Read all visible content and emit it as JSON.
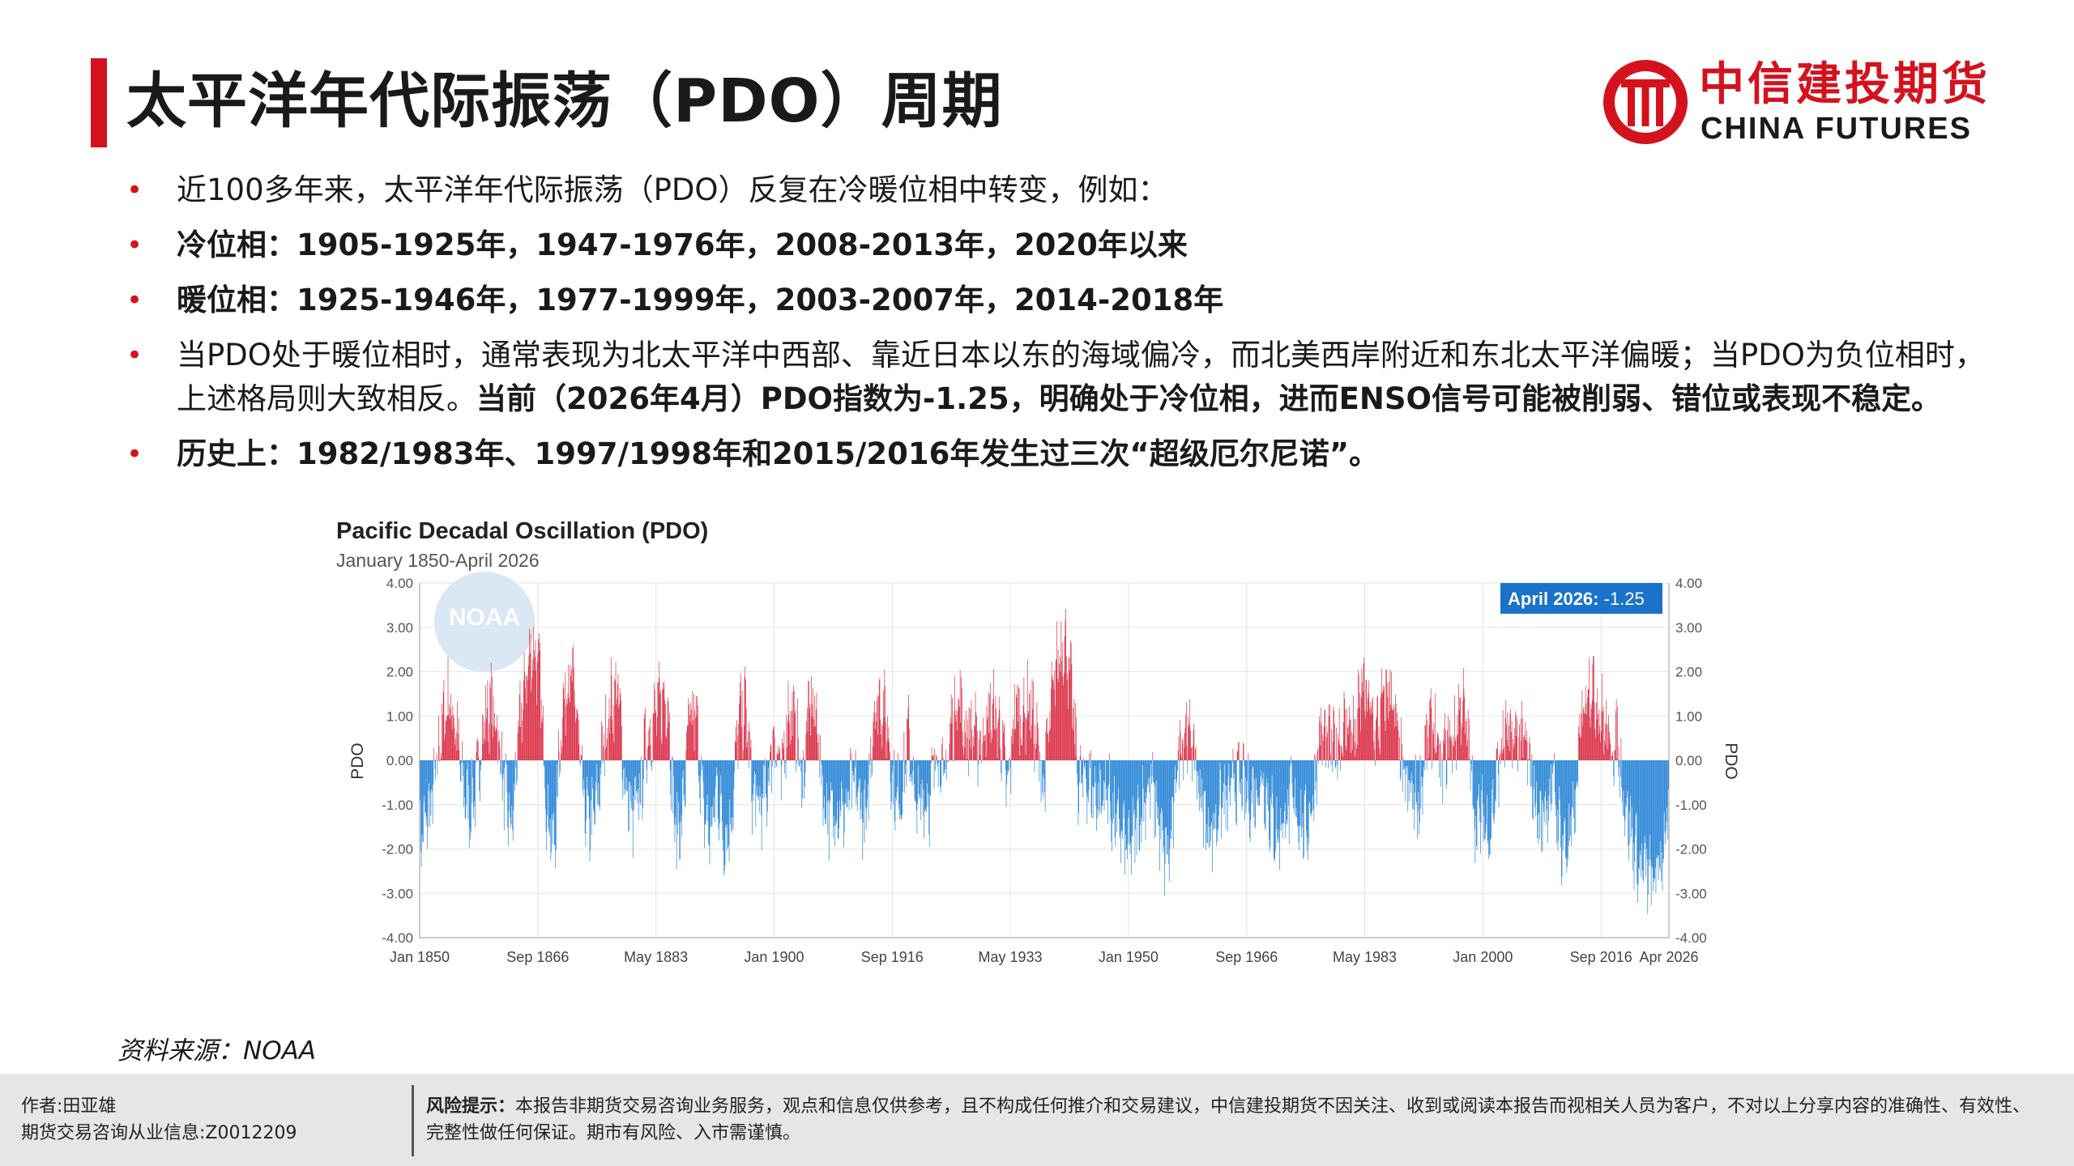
{
  "header": {
    "title": "太平洋年代际振荡（PDO）周期",
    "logo_cn": "中信建投期货",
    "logo_en": "CHINA FUTURES",
    "brand_color": "#d4121d"
  },
  "bullets": [
    {
      "text": "近100多年来，太平洋年代际振荡（PDO）反复在冷暖位相中转变，例如："
    },
    {
      "text": "冷位相：1905-1925年，1947-1976年，2008-2013年，2020年以来"
    },
    {
      "text": "暖位相：1925-1946年，1977-1999年，2003-2007年，2014-2018年"
    },
    {
      "text": "当PDO处于暖位相时，通常表现为北太平洋中西部、靠近日本以东的海域偏冷，而北美西岸附近和东北太平洋偏暖；当PDO为负位相时，上述格局则大致相反。",
      "bold": "当前（2026年4月）PDO指数为-1.25，明确处于冷位相，进而ENSO信号可能被削弱、错位或表现不稳定。"
    },
    {
      "text": "历史上：1982/1983年、1997/1998年和2015/2016年发生过三次“超级厄尔尼诺”。"
    }
  ],
  "chart_data": {
    "type": "bar",
    "title": "Pacific Decadal Oscillation (PDO)",
    "subtitle": "January 1850-April 2026",
    "ylabel": "PDO",
    "ylim": [
      -4,
      4
    ],
    "yticks": [
      "-4.00",
      "-3.00",
      "-2.00",
      "-1.00",
      "0.00",
      "1.00",
      "2.00",
      "3.00",
      "4.00"
    ],
    "ytick_values": [
      -4,
      -3,
      -2,
      -1,
      0,
      1,
      2,
      3,
      4
    ],
    "xticks": [
      "Jan 1850",
      "Sep 1866",
      "May 1883",
      "Jan 1900",
      "Sep 1916",
      "May 1933",
      "Jan 1950",
      "Sep 1966",
      "May 1983",
      "Jan 2000",
      "Sep 2016",
      "Apr 2026"
    ],
    "xtick_years": [
      1850,
      1866.67,
      1883.33,
      1900,
      1916.67,
      1933.33,
      1950,
      1966.67,
      1983.33,
      2000,
      2016.67,
      2026.25
    ],
    "annotation": {
      "label": "April 2026:",
      "value": "-1.25"
    },
    "watermark": "NOAA",
    "positive_color": "#d9263e",
    "negative_color": "#1f7fd4",
    "grid": true,
    "x_range": [
      1850,
      2026.25
    ],
    "annual_values": [
      {
        "x": 1850,
        "y": -1.8
      },
      {
        "x": 1851,
        "y": -1.4
      },
      {
        "x": 1852,
        "y": -0.7
      },
      {
        "x": 1853,
        "y": 0.6
      },
      {
        "x": 1854,
        "y": 1.4
      },
      {
        "x": 1855,
        "y": 0.9
      },
      {
        "x": 1856,
        "y": -0.5
      },
      {
        "x": 1857,
        "y": -1.1
      },
      {
        "x": 1858,
        "y": -0.6
      },
      {
        "x": 1859,
        "y": 0.8
      },
      {
        "x": 1860,
        "y": 1.3
      },
      {
        "x": 1861,
        "y": 0.7
      },
      {
        "x": 1862,
        "y": -0.8
      },
      {
        "x": 1863,
        "y": -1.6
      },
      {
        "x": 1864,
        "y": 0.6
      },
      {
        "x": 1865,
        "y": 1.9
      },
      {
        "x": 1866,
        "y": 2.6
      },
      {
        "x": 1867,
        "y": 1.8
      },
      {
        "x": 1868,
        "y": -1.2
      },
      {
        "x": 1869,
        "y": -2.0
      },
      {
        "x": 1870,
        "y": 0.9
      },
      {
        "x": 1871,
        "y": 2.0
      },
      {
        "x": 1872,
        "y": 1.4
      },
      {
        "x": 1873,
        "y": -0.9
      },
      {
        "x": 1874,
        "y": -1.5
      },
      {
        "x": 1875,
        "y": -1.0
      },
      {
        "x": 1876,
        "y": 0.4
      },
      {
        "x": 1877,
        "y": 1.3
      },
      {
        "x": 1878,
        "y": 1.6
      },
      {
        "x": 1879,
        "y": -0.6
      },
      {
        "x": 1880,
        "y": -1.3
      },
      {
        "x": 1881,
        "y": -0.9
      },
      {
        "x": 1882,
        "y": 0.5
      },
      {
        "x": 1883,
        "y": 0.9
      },
      {
        "x": 1884,
        "y": 1.3
      },
      {
        "x": 1885,
        "y": 1.5
      },
      {
        "x": 1886,
        "y": -1.6
      },
      {
        "x": 1887,
        "y": -1.4
      },
      {
        "x": 1888,
        "y": 0.8
      },
      {
        "x": 1889,
        "y": 1.0
      },
      {
        "x": 1890,
        "y": -1.1
      },
      {
        "x": 1891,
        "y": -1.7
      },
      {
        "x": 1892,
        "y": -0.6
      },
      {
        "x": 1893,
        "y": -1.8
      },
      {
        "x": 1894,
        "y": -1.3
      },
      {
        "x": 1895,
        "y": 0.9
      },
      {
        "x": 1896,
        "y": 1.2
      },
      {
        "x": 1897,
        "y": -0.8
      },
      {
        "x": 1898,
        "y": -1.1
      },
      {
        "x": 1899,
        "y": -0.7
      },
      {
        "x": 1900,
        "y": 0.7
      },
      {
        "x": 1901,
        "y": -0.5
      },
      {
        "x": 1902,
        "y": 1.2
      },
      {
        "x": 1903,
        "y": 0.8
      },
      {
        "x": 1904,
        "y": -0.6
      },
      {
        "x": 1905,
        "y": 1.3
      },
      {
        "x": 1906,
        "y": 1.0
      },
      {
        "x": 1907,
        "y": -0.9
      },
      {
        "x": 1908,
        "y": -1.3
      },
      {
        "x": 1909,
        "y": -1.0
      },
      {
        "x": 1910,
        "y": -1.2
      },
      {
        "x": 1911,
        "y": -0.6
      },
      {
        "x": 1912,
        "y": -0.8
      },
      {
        "x": 1913,
        "y": -1.6
      },
      {
        "x": 1914,
        "y": 1.1
      },
      {
        "x": 1915,
        "y": 1.4
      },
      {
        "x": 1916,
        "y": 0.8
      },
      {
        "x": 1917,
        "y": -0.9
      },
      {
        "x": 1918,
        "y": -0.7
      },
      {
        "x": 1919,
        "y": 0.6
      },
      {
        "x": 1920,
        "y": -1.2
      },
      {
        "x": 1921,
        "y": -0.8
      },
      {
        "x": 1922,
        "y": -0.9
      },
      {
        "x": 1923,
        "y": 0.4
      },
      {
        "x": 1924,
        "y": -0.6
      },
      {
        "x": 1925,
        "y": 0.8
      },
      {
        "x": 1926,
        "y": 1.5
      },
      {
        "x": 1927,
        "y": 0.6
      },
      {
        "x": 1928,
        "y": 0.7
      },
      {
        "x": 1929,
        "y": 0.3
      },
      {
        "x": 1930,
        "y": 0.9
      },
      {
        "x": 1931,
        "y": 1.1
      },
      {
        "x": 1932,
        "y": 0.6
      },
      {
        "x": 1933,
        "y": -0.8
      },
      {
        "x": 1934,
        "y": 1.3
      },
      {
        "x": 1935,
        "y": 0.9
      },
      {
        "x": 1936,
        "y": 1.4
      },
      {
        "x": 1937,
        "y": 0.5
      },
      {
        "x": 1938,
        "y": -0.6
      },
      {
        "x": 1939,
        "y": 1.0
      },
      {
        "x": 1940,
        "y": 2.3
      },
      {
        "x": 1941,
        "y": 2.8
      },
      {
        "x": 1942,
        "y": 1.5
      },
      {
        "x": 1943,
        "y": -0.6
      },
      {
        "x": 1944,
        "y": -0.4
      },
      {
        "x": 1945,
        "y": -0.7
      },
      {
        "x": 1946,
        "y": -0.9
      },
      {
        "x": 1947,
        "y": -0.6
      },
      {
        "x": 1948,
        "y": -1.4
      },
      {
        "x": 1949,
        "y": -1.6
      },
      {
        "x": 1950,
        "y": -2.1
      },
      {
        "x": 1951,
        "y": -1.6
      },
      {
        "x": 1952,
        "y": -1.0
      },
      {
        "x": 1953,
        "y": -0.5
      },
      {
        "x": 1954,
        "y": -1.1
      },
      {
        "x": 1955,
        "y": -2.2
      },
      {
        "x": 1956,
        "y": -2.0
      },
      {
        "x": 1957,
        "y": 0.2
      },
      {
        "x": 1958,
        "y": 0.8
      },
      {
        "x": 1959,
        "y": 0.4
      },
      {
        "x": 1960,
        "y": -0.6
      },
      {
        "x": 1961,
        "y": -1.5
      },
      {
        "x": 1962,
        "y": -1.6
      },
      {
        "x": 1963,
        "y": -0.9
      },
      {
        "x": 1964,
        "y": -1.0
      },
      {
        "x": 1965,
        "y": -0.4
      },
      {
        "x": 1966,
        "y": -0.6
      },
      {
        "x": 1967,
        "y": -0.9
      },
      {
        "x": 1968,
        "y": -0.7
      },
      {
        "x": 1969,
        "y": -0.4
      },
      {
        "x": 1970,
        "y": -1.2
      },
      {
        "x": 1971,
        "y": -1.7
      },
      {
        "x": 1972,
        "y": -1.3
      },
      {
        "x": 1973,
        "y": -0.9
      },
      {
        "x": 1974,
        "y": -1.2
      },
      {
        "x": 1975,
        "y": -1.6
      },
      {
        "x": 1976,
        "y": -0.9
      },
      {
        "x": 1977,
        "y": 0.6
      },
      {
        "x": 1978,
        "y": 0.4
      },
      {
        "x": 1979,
        "y": 0.3
      },
      {
        "x": 1980,
        "y": 0.6
      },
      {
        "x": 1981,
        "y": 0.9
      },
      {
        "x": 1982,
        "y": 0.5
      },
      {
        "x": 1983,
        "y": 1.7
      },
      {
        "x": 1984,
        "y": 1.2
      },
      {
        "x": 1985,
        "y": 0.6
      },
      {
        "x": 1986,
        "y": 1.3
      },
      {
        "x": 1987,
        "y": 1.7
      },
      {
        "x": 1988,
        "y": 0.4
      },
      {
        "x": 1989,
        "y": -0.6
      },
      {
        "x": 1990,
        "y": -0.8
      },
      {
        "x": 1991,
        "y": -1.0
      },
      {
        "x": 1992,
        "y": 0.4
      },
      {
        "x": 1993,
        "y": 0.9
      },
      {
        "x": 1994,
        "y": -0.3
      },
      {
        "x": 1995,
        "y": 0.4
      },
      {
        "x": 1996,
        "y": 0.5
      },
      {
        "x": 1997,
        "y": 1.4
      },
      {
        "x": 1998,
        "y": 0.3
      },
      {
        "x": 1999,
        "y": -1.4
      },
      {
        "x": 2000,
        "y": -1.3
      },
      {
        "x": 2001,
        "y": -1.6
      },
      {
        "x": 2002,
        "y": -0.4
      },
      {
        "x": 2003,
        "y": 0.6
      },
      {
        "x": 2004,
        "y": 0.4
      },
      {
        "x": 2005,
        "y": 0.6
      },
      {
        "x": 2006,
        "y": 0.3
      },
      {
        "x": 2007,
        "y": -0.5
      },
      {
        "x": 2008,
        "y": -1.5
      },
      {
        "x": 2009,
        "y": -0.9
      },
      {
        "x": 2010,
        "y": -0.6
      },
      {
        "x": 2011,
        "y": -1.8
      },
      {
        "x": 2012,
        "y": -2.0
      },
      {
        "x": 2013,
        "y": -1.2
      },
      {
        "x": 2014,
        "y": 1.1
      },
      {
        "x": 2015,
        "y": 1.9
      },
      {
        "x": 2016,
        "y": 1.4
      },
      {
        "x": 2017,
        "y": 0.9
      },
      {
        "x": 2018,
        "y": 0.3
      },
      {
        "x": 2019,
        "y": 0.4
      },
      {
        "x": 2020,
        "y": -0.9
      },
      {
        "x": 2021,
        "y": -1.7
      },
      {
        "x": 2022,
        "y": -2.4
      },
      {
        "x": 2023,
        "y": -2.5
      },
      {
        "x": 2024,
        "y": -2.8
      },
      {
        "x": 2025,
        "y": -2.3
      },
      {
        "x": 2026,
        "y": -1.4
      },
      {
        "x": 2026.25,
        "y": -1.25
      }
    ]
  },
  "source": "资料来源：NOAA",
  "footer": {
    "author": "作者:田亚雄",
    "license": "期货交易咨询从业信息:Z0012209",
    "risk_label": "风险提示：",
    "risk_text": "本报告非期货交易咨询业务服务，观点和信息仅供参考，且不构成任何推介和交易建议，中信建投期货不因关注、收到或阅读本报告而视相关人员为客户，不对以上分享内容的准确性、有效性、完整性做任何保证。期市有风险、入市需谨慎。"
  }
}
